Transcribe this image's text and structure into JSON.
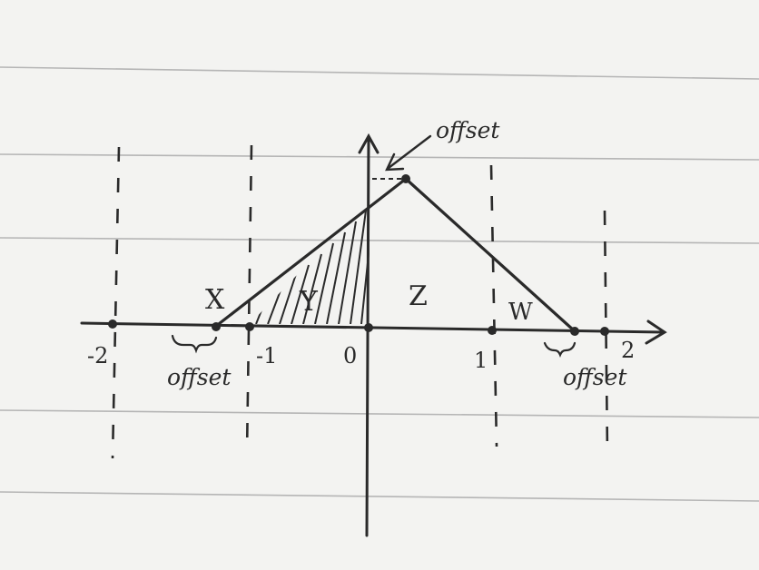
{
  "diagram": {
    "axis_ticks": [
      "-2",
      "-1",
      "0",
      "1",
      "2"
    ],
    "region_labels": [
      "X",
      "Y",
      "Z",
      "W"
    ],
    "offset_label": "offset",
    "colors": {
      "paper": "#f3f3f1",
      "ruled_line": "#b5b5b5",
      "ink": "#2a2a2a"
    }
  }
}
